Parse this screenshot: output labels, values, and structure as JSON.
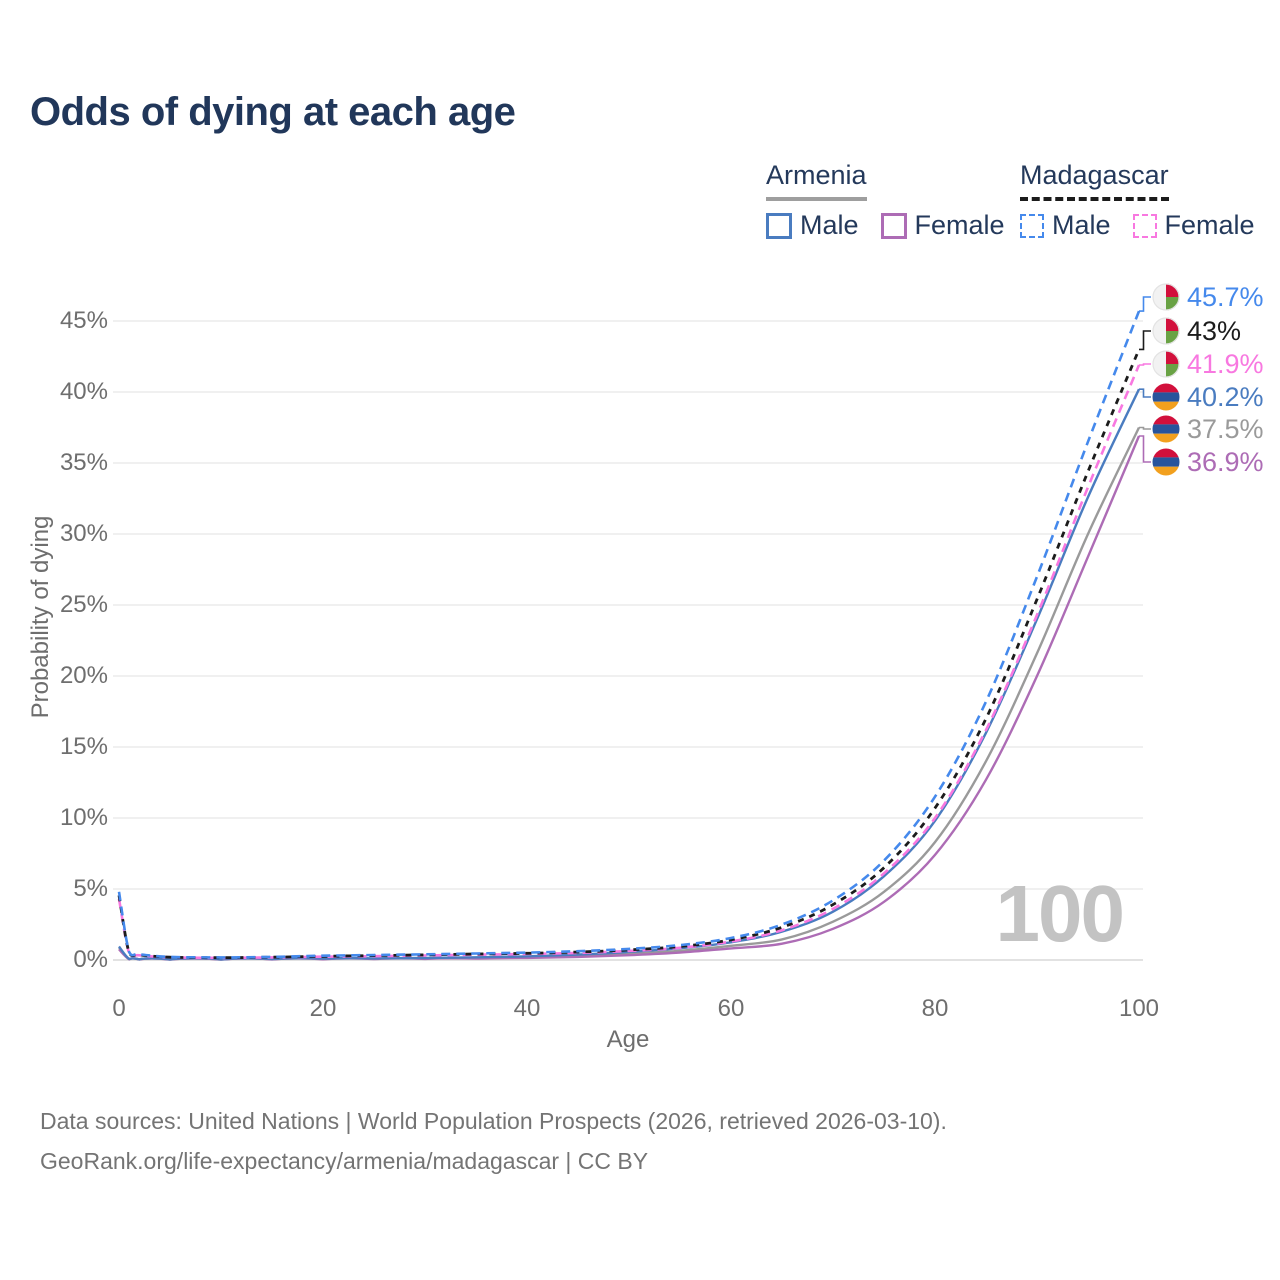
{
  "page": {
    "title": "Odds of dying at each age"
  },
  "legend": {
    "groups": [
      {
        "country": "Armenia",
        "line_color": "#9e9e9e",
        "line_style": "solid",
        "items": [
          {
            "label": "Male",
            "color": "#4a7cc0",
            "style": "solid"
          },
          {
            "label": "Female",
            "color": "#ad6cb5",
            "style": "solid"
          }
        ]
      },
      {
        "country": "Madagascar",
        "line_color": "#1c1c1c",
        "line_style": "dashed",
        "items": [
          {
            "label": "Male",
            "color": "#4589ec",
            "style": "dashed"
          },
          {
            "label": "Female",
            "color": "#f878e0",
            "style": "dashed"
          }
        ]
      }
    ]
  },
  "chart_data": {
    "type": "line",
    "title": "Odds of dying at each age",
    "xlabel": "Age",
    "ylabel": "Probability of dying",
    "xlim": [
      0,
      100
    ],
    "ylim_pct": [
      0,
      47
    ],
    "x_ticks": [
      0,
      20,
      40,
      60,
      80,
      100
    ],
    "y_ticks_pct": [
      0,
      5,
      10,
      15,
      20,
      25,
      30,
      35,
      40,
      45
    ],
    "grid": "horizontal",
    "hover_age_indicator": "100",
    "ages": [
      0,
      1,
      2,
      5,
      10,
      15,
      20,
      25,
      30,
      35,
      40,
      45,
      50,
      55,
      60,
      65,
      70,
      75,
      80,
      85,
      90,
      95,
      100
    ],
    "series": [
      {
        "name": "Madagascar Male",
        "color": "#4589ec",
        "dash": "9 6",
        "width": 2.6,
        "values_pct": [
          4.8,
          0.55,
          0.4,
          0.22,
          0.18,
          0.22,
          0.3,
          0.35,
          0.4,
          0.46,
          0.52,
          0.62,
          0.78,
          1.05,
          1.55,
          2.5,
          4.2,
          7.0,
          11.5,
          18.2,
          27.0,
          36.5,
          45.7
        ],
        "end_value_pct": 45.7
      },
      {
        "name": "Madagascar (both sexes)",
        "color": "#1c1c1c",
        "dash": "6 6",
        "width": 2.8,
        "values_pct": [
          4.55,
          0.5,
          0.36,
          0.2,
          0.16,
          0.2,
          0.26,
          0.31,
          0.36,
          0.42,
          0.47,
          0.56,
          0.71,
          0.95,
          1.42,
          2.3,
          3.9,
          6.5,
          10.7,
          17.0,
          25.4,
          34.4,
          43.0
        ],
        "end_value_pct": 43
      },
      {
        "name": "Madagascar Female",
        "color": "#f878e0",
        "dash": "9 6",
        "width": 2.6,
        "values_pct": [
          4.3,
          0.46,
          0.33,
          0.19,
          0.15,
          0.18,
          0.23,
          0.27,
          0.32,
          0.37,
          0.42,
          0.5,
          0.64,
          0.86,
          1.3,
          2.1,
          3.6,
          6.1,
          10.0,
          16.2,
          24.3,
          33.3,
          41.9
        ],
        "end_value_pct": 41.9
      },
      {
        "name": "Armenia Male",
        "color": "#4a7cc0",
        "dash": null,
        "width": 2.4,
        "values_pct": [
          0.95,
          0.07,
          0.05,
          0.04,
          0.04,
          0.06,
          0.09,
          0.11,
          0.14,
          0.19,
          0.26,
          0.38,
          0.57,
          0.83,
          1.25,
          2.0,
          3.4,
          5.9,
          9.8,
          16.0,
          24.0,
          32.6,
          40.2
        ],
        "end_value_pct": 40.2
      },
      {
        "name": "Armenia (both sexes)",
        "color": "#9a9a9a",
        "dash": null,
        "width": 2.4,
        "values_pct": [
          0.85,
          0.06,
          0.045,
          0.035,
          0.035,
          0.05,
          0.07,
          0.085,
          0.11,
          0.14,
          0.2,
          0.29,
          0.44,
          0.65,
          1.0,
          1.45,
          2.7,
          4.8,
          8.3,
          14.0,
          21.6,
          30.0,
          37.5
        ],
        "end_value_pct": 37.5
      },
      {
        "name": "Armenia Female",
        "color": "#ad6cb5",
        "dash": null,
        "width": 2.4,
        "values_pct": [
          0.75,
          0.05,
          0.04,
          0.03,
          0.03,
          0.04,
          0.05,
          0.06,
          0.08,
          0.1,
          0.15,
          0.22,
          0.34,
          0.52,
          0.82,
          1.15,
          2.2,
          4.1,
          7.4,
          12.7,
          20.0,
          28.4,
          36.9
        ],
        "end_value_pct": 36.9
      }
    ],
    "end_labels": [
      {
        "value": "45.7%",
        "color": "#4589ec",
        "flag": "madagascar",
        "series": "Madagascar Male"
      },
      {
        "value": "43%",
        "color": "#1c1c1c",
        "flag": "madagascar",
        "series": "Madagascar (both sexes)"
      },
      {
        "value": "41.9%",
        "color": "#f878e0",
        "flag": "madagascar",
        "series": "Madagascar Female"
      },
      {
        "value": "40.2%",
        "color": "#4a7cc0",
        "flag": "armenia",
        "series": "Armenia Male"
      },
      {
        "value": "37.5%",
        "color": "#9a9a9a",
        "flag": "armenia",
        "series": "Armenia (both sexes)"
      },
      {
        "value": "36.9%",
        "color": "#ad6cb5",
        "flag": "armenia",
        "series": "Armenia Female"
      }
    ]
  },
  "footer": {
    "line1": "Data sources: United Nations | World Population Prospects (2026, retrieved 2026-03-10).",
    "line2": "GeoRank.org/life-expectancy/armenia/madagascar | CC BY"
  }
}
